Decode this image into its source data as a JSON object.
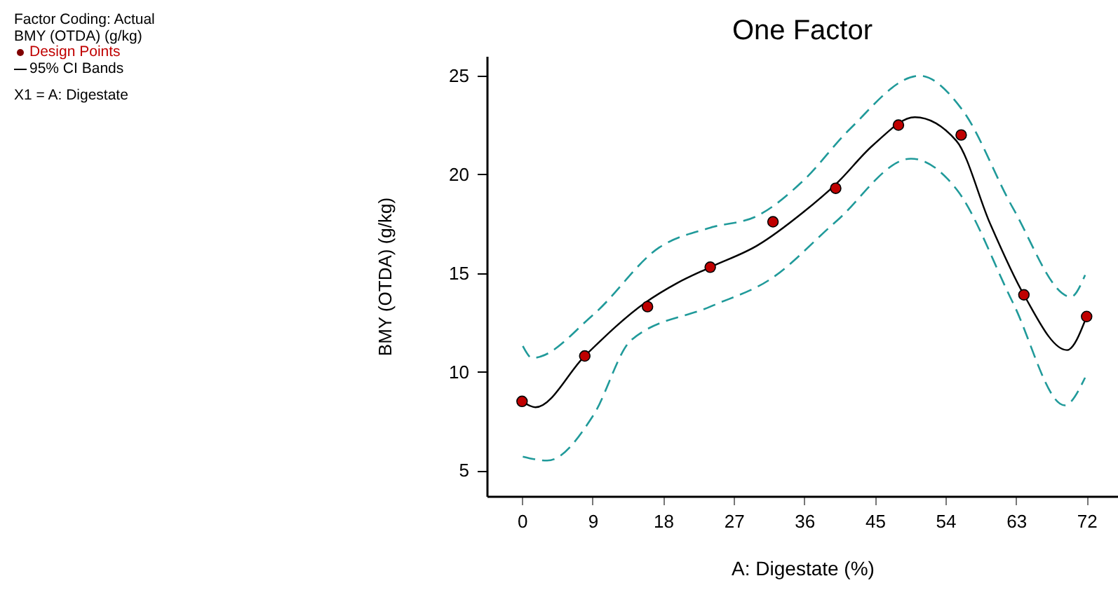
{
  "chart_data": {
    "type": "line",
    "title": "One Factor",
    "xlabel": "A: Digestate (%)",
    "ylabel": "BMY (OTDA) (g/kg)",
    "annotations": [
      "Factor Coding: Actual",
      "BMY (OTDA) (g/kg)",
      "Design Points",
      "95% CI Bands",
      "X1 = A: Digestate"
    ],
    "xlim": [
      -4.5,
      76
    ],
    "xticks": [
      0,
      9,
      18,
      27,
      36,
      45,
      54,
      63,
      72
    ],
    "ylim": [
      3.7,
      26
    ],
    "yticks": [
      5,
      10,
      15,
      20,
      25
    ],
    "grid": false,
    "series": [
      {
        "type": "scatter",
        "marker": "circle",
        "color": "#c00000",
        "x": [
          0,
          8,
          16,
          24,
          32,
          40,
          48,
          56,
          64,
          72
        ],
        "values": [
          8.5,
          10.8,
          13.3,
          15.3,
          17.6,
          19.3,
          22.5,
          22.0,
          13.9,
          12.8
        ]
      },
      {
        "line_style": "solid",
        "color": "#000000",
        "x": [
          0,
          1.7,
          8,
          15.7,
          19.8,
          24,
          30,
          35.9,
          40,
          44.8,
          50.1,
          55.4,
          59.7,
          64,
          69.5,
          72
        ],
        "values": [
          8.5,
          8.2,
          10.8,
          13.5,
          14.5,
          15.3,
          16.4,
          18.1,
          19.5,
          21.5,
          22.9,
          21.7,
          17.5,
          13.9,
          11.1,
          12.8
        ]
      },
      {
        "line_style": "dashed",
        "color": "#209a9a",
        "x": [
          0.1,
          1.3,
          9.1,
          17.5,
          24,
          30,
          35.9,
          41.8,
          50.7,
          56.1,
          62.6,
          70,
          71.8
        ],
        "values": [
          11.3,
          10.7,
          12.9,
          16.3,
          17.3,
          17.9,
          19.7,
          22.3,
          25.0,
          23.3,
          18.3,
          13.8,
          14.9
        ]
      },
      {
        "line_style": "dashed",
        "color": "#209a9a",
        "x": [
          0.1,
          3.2,
          9.1,
          13.9,
          24,
          31.7,
          40,
          49.6,
          55.5,
          62.6,
          69.2,
          71.8
        ],
        "values": [
          5.7,
          5.5,
          7.8,
          11.6,
          13.3,
          14.7,
          17.6,
          20.8,
          19.2,
          13.5,
          8.3,
          9.7
        ]
      }
    ]
  }
}
